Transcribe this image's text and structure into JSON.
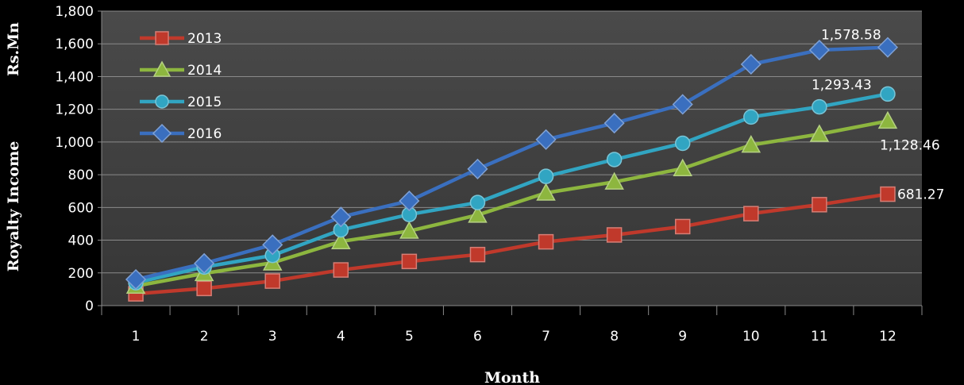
{
  "chart_data": {
    "type": "line",
    "xlabel": "Month",
    "ylabel": "Royalty Income",
    "ylabel_unit": "Rs.Mn",
    "categories": [
      "1",
      "2",
      "3",
      "4",
      "5",
      "6",
      "7",
      "8",
      "9",
      "10",
      "11",
      "12"
    ],
    "ylim": [
      0,
      1800
    ],
    "yticks": [
      "0",
      "200",
      "400",
      "600",
      "800",
      "1,000",
      "1,200",
      "1,400",
      "1,600",
      "1,800"
    ],
    "grid": true,
    "legend_position": "top-left",
    "series": [
      {
        "name": "2013",
        "color": "#c0392b",
        "marker": "square",
        "values": [
          72,
          105,
          150,
          218,
          270,
          312,
          390,
          432,
          483,
          562,
          617,
          681.27
        ],
        "end_label": "681.27"
      },
      {
        "name": "2014",
        "color": "#8db63f",
        "marker": "triangle",
        "values": [
          120,
          197,
          262,
          392,
          456,
          554,
          689,
          756,
          838,
          982,
          1048,
          1128.46
        ],
        "end_label": "1,128.46"
      },
      {
        "name": "2015",
        "color": "#31a5c2",
        "marker": "circle",
        "values": [
          140,
          236,
          307,
          463,
          557,
          630,
          790,
          893,
          992,
          1153,
          1215,
          1293.43
        ],
        "end_label": "1,293.43"
      },
      {
        "name": "2016",
        "color": "#3a6fbf",
        "marker": "diamond",
        "values": [
          160,
          258,
          372,
          542,
          640,
          835,
          1015,
          1115,
          1230,
          1475,
          1562,
          1578.58
        ],
        "end_label": "1,578.58"
      }
    ]
  }
}
